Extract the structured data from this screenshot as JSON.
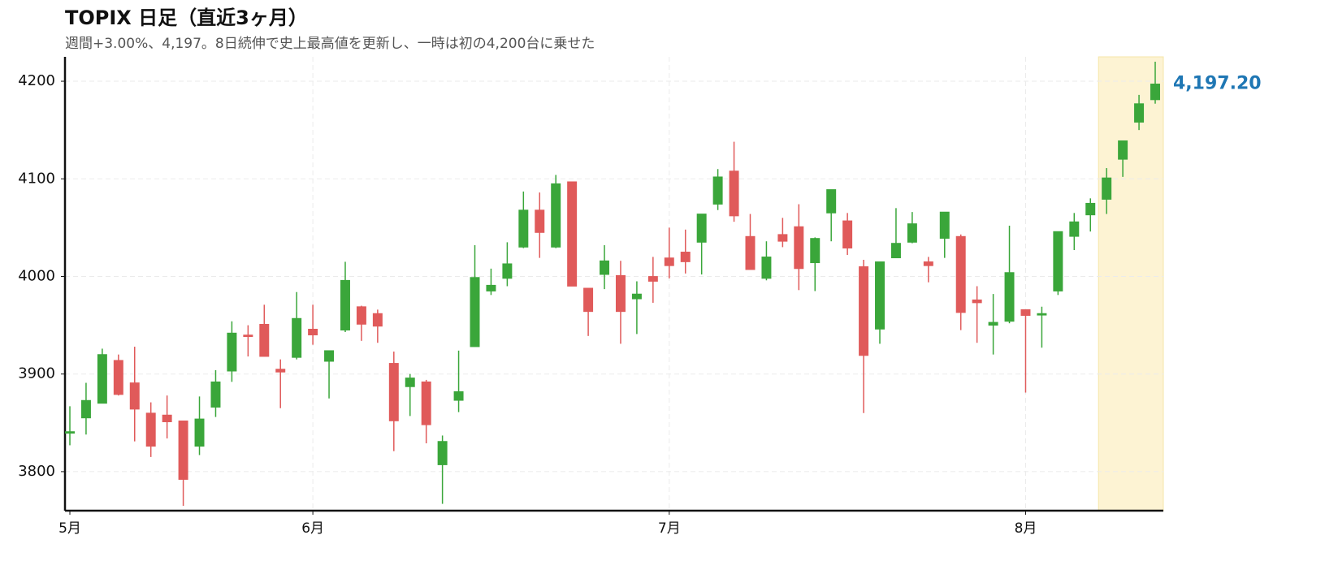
{
  "chart_data": {
    "type": "candlestick",
    "title": "TOPIX 日足（直近3ヶ月）",
    "subtitle": "週間+3.00%、4,197。8日続伸で史上最高値を更新し、一時は初の4,200台に乗せた",
    "categories": [
      "5月",
      null,
      null,
      null,
      null,
      null,
      null,
      null,
      null,
      null,
      null,
      null,
      null,
      null,
      null,
      "6月",
      null,
      null,
      null,
      null,
      null,
      null,
      null,
      null,
      null,
      null,
      null,
      null,
      null,
      null,
      null,
      null,
      null,
      null,
      null,
      null,
      null,
      "7月",
      null,
      null,
      null,
      null,
      null,
      null,
      null,
      null,
      null,
      null,
      null,
      null,
      null,
      null,
      null,
      null,
      null,
      null,
      null,
      null,
      null,
      "8月",
      null,
      null,
      null,
      null,
      null,
      null,
      null,
      null
    ],
    "open": [
      3840,
      3855,
      3870,
      3914,
      3891,
      3860,
      3858,
      3852,
      3826,
      3866,
      3903,
      3940,
      3951,
      3905,
      3917,
      3946,
      3913,
      3945,
      3969,
      3962,
      3911,
      3887,
      3892,
      3807,
      3873,
      3928,
      3985,
      3998,
      4030,
      4068,
      4030,
      4097,
      3988,
      4002,
      4001,
      3977,
      4000,
      4019,
      4025,
      4035,
      4074,
      4108,
      4041,
      3998,
      4043,
      4051,
      4014,
      4065,
      4057,
      4010,
      3946,
      4019,
      4035,
      4015,
      4039,
      4041,
      3976,
      3950,
      3954,
      3966,
      3961,
      3985,
      4041,
      4063,
      4079,
      4120,
      4158,
      4181
    ],
    "high": [
      3867,
      3891,
      3926,
      3920,
      3928,
      3871,
      3878,
      3852,
      3877,
      3904,
      3954,
      3950,
      3971,
      3915,
      3984,
      3971,
      3924,
      4015,
      3970,
      3966,
      3923,
      3900,
      3894,
      3837,
      3924,
      4032,
      4008,
      4035,
      4087,
      4086,
      4104,
      4097,
      3988,
      4032,
      4016,
      3995,
      4020,
      4050,
      4048,
      4064,
      4110,
      4138,
      4064,
      4036,
      4060,
      4074,
      4040,
      4089,
      4065,
      4017,
      4015,
      4070,
      4066,
      4020,
      4066,
      4043,
      3990,
      3982,
      4052,
      3966,
      3969,
      4046,
      4065,
      4080,
      4111,
      4139,
      4186,
      4220
    ],
    "low": [
      3827,
      3838,
      3870,
      3878,
      3831,
      3815,
      3834,
      3765,
      3817,
      3856,
      3892,
      3918,
      3918,
      3865,
      3915,
      3930,
      3875,
      3943,
      3934,
      3932,
      3821,
      3857,
      3829,
      3767,
      3861,
      3928,
      3981,
      3990,
      4029,
      4019,
      4029,
      3990,
      3939,
      3987,
      3931,
      3941,
      3973,
      3998,
      4003,
      4002,
      4068,
      4056,
      4007,
      3996,
      4030,
      3986,
      3985,
      4036,
      4022,
      3860,
      3931,
      4019,
      4034,
      3994,
      4019,
      3945,
      3932,
      3920,
      3952,
      3881,
      3927,
      3981,
      4027,
      4046,
      4064,
      4102,
      4150,
      4177
    ],
    "close": [
      3841,
      3873,
      3920,
      3879,
      3864,
      3826,
      3851,
      3792,
      3854,
      3892,
      3942,
      3939,
      3918,
      3902,
      3957,
      3940,
      3924,
      3996,
      3951,
      3949,
      3852,
      3896,
      3848,
      3831,
      3882,
      3999,
      3991,
      4013,
      4068,
      4045,
      4095,
      3990,
      3964,
      4016,
      3964,
      3982,
      3995,
      4011,
      4015,
      4064,
      4102,
      4062,
      4007,
      4020,
      4036,
      4008,
      4039,
      4089,
      4029,
      3919,
      4015,
      4034,
      4054,
      4011,
      4066,
      3963,
      3973,
      3953,
      4004,
      3960,
      3962,
      4046,
      4056,
      4075,
      4101,
      4139,
      4177,
      4197.2
    ],
    "up_color": "#3aa63a",
    "down_color": "#e05a5a",
    "last_label": "4,197.20",
    "last_label_color": "#1f77b4",
    "highlight_range": [
      64,
      67
    ],
    "highlight_color": "#fdf3d3",
    "ylim": [
      3760,
      4225
    ],
    "yticks": [
      3800,
      3900,
      4000,
      4100,
      4200
    ],
    "grid": true
  }
}
